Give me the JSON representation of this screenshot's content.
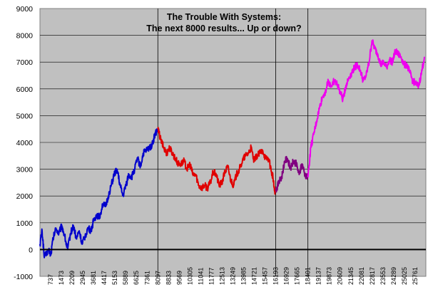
{
  "chart_data": {
    "type": "line",
    "title_lines": [
      "The Trouble With Systems:",
      "The next 8000 results... Up or down?"
    ],
    "ylim": [
      -1000,
      9000
    ],
    "yticks": [
      -1000,
      0,
      1000,
      2000,
      3000,
      4000,
      5000,
      6000,
      7000,
      8000,
      9000
    ],
    "xlim": [
      1,
      26500
    ],
    "xticks": [
      737,
      1473,
      2209,
      2945,
      3681,
      4417,
      5153,
      5889,
      6625,
      7361,
      8097,
      8833,
      9569,
      10305,
      11041,
      11777,
      12513,
      13249,
      13985,
      14721,
      15457,
      16193,
      16929,
      17665,
      18401,
      19137,
      19873,
      20609,
      21345,
      22081,
      22817,
      23553,
      24289,
      25025,
      25761
    ],
    "vertical_markers": [
      8097,
      16193,
      18401
    ],
    "background_color": "#c0c0c0",
    "series": [
      {
        "color": "#0000cc",
        "points": [
          [
            1,
            200
          ],
          [
            150,
            700
          ],
          [
            300,
            -300
          ],
          [
            600,
            0
          ],
          [
            750,
            -200
          ],
          [
            900,
            400
          ],
          [
            1100,
            800
          ],
          [
            1300,
            600
          ],
          [
            1500,
            900
          ],
          [
            1700,
            500
          ],
          [
            1900,
            0
          ],
          [
            2100,
            600
          ],
          [
            2300,
            900
          ],
          [
            2500,
            400
          ],
          [
            2700,
            700
          ],
          [
            2900,
            200
          ],
          [
            3100,
            500
          ],
          [
            3300,
            800
          ],
          [
            3500,
            700
          ],
          [
            3700,
            1100
          ],
          [
            3900,
            1300
          ],
          [
            4100,
            1200
          ],
          [
            4300,
            1700
          ],
          [
            4500,
            1600
          ],
          [
            4700,
            2000
          ],
          [
            4900,
            2400
          ],
          [
            5100,
            2800
          ],
          [
            5300,
            3000
          ],
          [
            5500,
            2400
          ],
          [
            5700,
            2000
          ],
          [
            5900,
            2400
          ],
          [
            6100,
            2800
          ],
          [
            6300,
            2700
          ],
          [
            6500,
            3000
          ],
          [
            6700,
            3400
          ],
          [
            6900,
            3100
          ],
          [
            7100,
            3600
          ],
          [
            7300,
            3700
          ],
          [
            7500,
            3800
          ],
          [
            7700,
            3900
          ],
          [
            7900,
            4300
          ],
          [
            8097,
            4500
          ]
        ]
      },
      {
        "color": "#e00000",
        "points": [
          [
            8097,
            4500
          ],
          [
            8300,
            4100
          ],
          [
            8500,
            3800
          ],
          [
            8700,
            3600
          ],
          [
            8900,
            3800
          ],
          [
            9100,
            3600
          ],
          [
            9300,
            3400
          ],
          [
            9500,
            3200
          ],
          [
            9700,
            3200
          ],
          [
            9900,
            3300
          ],
          [
            10100,
            3000
          ],
          [
            10300,
            3200
          ],
          [
            10500,
            2800
          ],
          [
            10700,
            2800
          ],
          [
            10900,
            2400
          ],
          [
            11100,
            2300
          ],
          [
            11300,
            2400
          ],
          [
            11500,
            2300
          ],
          [
            11700,
            2500
          ],
          [
            11900,
            2900
          ],
          [
            12100,
            2800
          ],
          [
            12300,
            2400
          ],
          [
            12500,
            2500
          ],
          [
            12700,
            2900
          ],
          [
            12900,
            3100
          ],
          [
            13100,
            2600
          ],
          [
            13300,
            2400
          ],
          [
            13500,
            2800
          ],
          [
            13700,
            3000
          ],
          [
            13900,
            3300
          ],
          [
            14100,
            3500
          ],
          [
            14300,
            3600
          ],
          [
            14500,
            3800
          ],
          [
            14700,
            3300
          ],
          [
            14900,
            3500
          ],
          [
            15100,
            3600
          ],
          [
            15300,
            3700
          ],
          [
            15500,
            3400
          ],
          [
            15700,
            3400
          ],
          [
            15900,
            2900
          ],
          [
            16000,
            2700
          ],
          [
            16100,
            2200
          ],
          [
            16193,
            2200
          ]
        ]
      },
      {
        "color": "#800080",
        "points": [
          [
            16193,
            2200
          ],
          [
            16400,
            2500
          ],
          [
            16600,
            2700
          ],
          [
            16800,
            3300
          ],
          [
            17000,
            3400
          ],
          [
            17200,
            3000
          ],
          [
            17400,
            3300
          ],
          [
            17600,
            3200
          ],
          [
            17800,
            2800
          ],
          [
            18000,
            3200
          ],
          [
            18200,
            2800
          ],
          [
            18401,
            2700
          ]
        ]
      },
      {
        "color": "#ee00ee",
        "points": [
          [
            18401,
            2700
          ],
          [
            18600,
            3800
          ],
          [
            18800,
            4300
          ],
          [
            19000,
            4800
          ],
          [
            19200,
            5300
          ],
          [
            19400,
            5700
          ],
          [
            19600,
            5900
          ],
          [
            19800,
            6300
          ],
          [
            20000,
            6100
          ],
          [
            20200,
            6300
          ],
          [
            20400,
            6200
          ],
          [
            20600,
            5900
          ],
          [
            20800,
            5600
          ],
          [
            21000,
            6100
          ],
          [
            21200,
            6400
          ],
          [
            21400,
            6600
          ],
          [
            21600,
            6800
          ],
          [
            21800,
            6900
          ],
          [
            22000,
            6700
          ],
          [
            22200,
            6300
          ],
          [
            22400,
            6500
          ],
          [
            22600,
            7000
          ],
          [
            22800,
            7800
          ],
          [
            23000,
            7500
          ],
          [
            23200,
            7300
          ],
          [
            23400,
            6900
          ],
          [
            23600,
            7000
          ],
          [
            23800,
            6800
          ],
          [
            24000,
            7100
          ],
          [
            24200,
            7000
          ],
          [
            24400,
            7400
          ],
          [
            24600,
            7300
          ],
          [
            24800,
            7200
          ],
          [
            25000,
            6900
          ],
          [
            25200,
            6900
          ],
          [
            25400,
            6600
          ],
          [
            25600,
            6300
          ],
          [
            25800,
            6200
          ],
          [
            26000,
            6100
          ],
          [
            26200,
            6600
          ],
          [
            26400,
            7200
          ]
        ]
      }
    ]
  }
}
